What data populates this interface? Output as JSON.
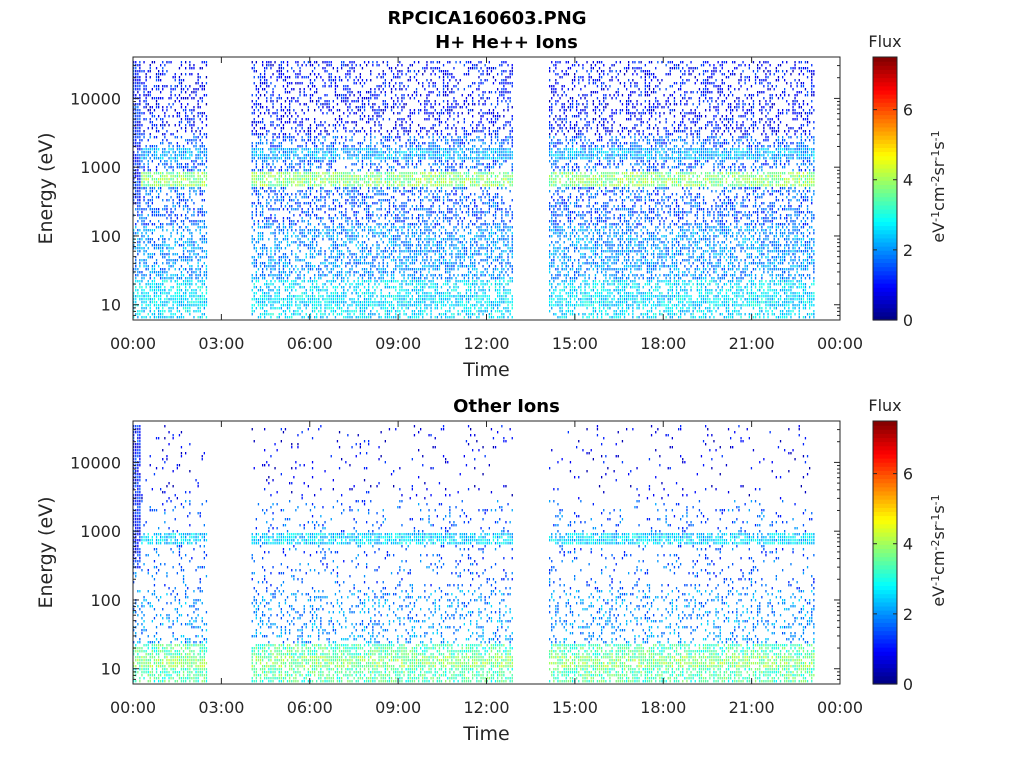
{
  "figure": {
    "title_line1": "RPCICA160603.PNG"
  },
  "chart_data": [
    {
      "type": "heatmap",
      "title": "H+ He++ Ions",
      "xlabel": "Time",
      "ylabel": "Energy (eV)",
      "yscale": "log",
      "ylim": [
        6,
        40000
      ],
      "xlim_hours": [
        0,
        24
      ],
      "x_ticks": [
        "00:00",
        "03:00",
        "06:00",
        "09:00",
        "12:00",
        "15:00",
        "18:00",
        "21:00",
        "00:00"
      ],
      "y_ticks": [
        {
          "value": 10,
          "label": "10"
        },
        {
          "value": 100,
          "label": "100"
        },
        {
          "value": 1000,
          "label": "1000"
        },
        {
          "value": 10000,
          "label": "10000"
        }
      ],
      "data_gaps_hours": [
        [
          2.5,
          4.0
        ],
        [
          12.9,
          14.1
        ]
      ],
      "data_end_hours": 23.1,
      "bands": [
        {
          "center_eV": 700,
          "flux": 3.8
        },
        {
          "center_eV": 1600,
          "flux": 2.2
        },
        {
          "center_eV": 12,
          "flux": 2.6
        }
      ],
      "colorbar": {
        "label": "Flux",
        "unit_parts": [
          "eV",
          "-1",
          "cm",
          "-2",
          "sr",
          "-1",
          "s",
          "-1"
        ],
        "min": 0,
        "max": 7.5,
        "ticks": [
          "0",
          "2",
          "4",
          "6"
        ],
        "colormap": "jet"
      }
    },
    {
      "type": "heatmap",
      "title": "Other Ions",
      "xlabel": "Time",
      "ylabel": "Energy (eV)",
      "yscale": "log",
      "ylim": [
        6,
        40000
      ],
      "xlim_hours": [
        0,
        24
      ],
      "x_ticks": [
        "00:00",
        "03:00",
        "06:00",
        "09:00",
        "12:00",
        "15:00",
        "18:00",
        "21:00",
        "00:00"
      ],
      "y_ticks": [
        {
          "value": 10,
          "label": "10"
        },
        {
          "value": 100,
          "label": "100"
        },
        {
          "value": 1000,
          "label": "1000"
        },
        {
          "value": 10000,
          "label": "10000"
        }
      ],
      "data_gaps_hours": [
        [
          2.5,
          4.0
        ],
        [
          12.9,
          14.1
        ]
      ],
      "data_end_hours": 23.1,
      "bands": [
        {
          "center_eV": 800,
          "flux": 2.5
        },
        {
          "center_eV": 13,
          "flux": 3.8
        }
      ],
      "colorbar": {
        "label": "Flux",
        "unit_parts": [
          "eV",
          "-1",
          "cm",
          "-2",
          "sr",
          "-1",
          "s",
          "-1"
        ],
        "min": 0,
        "max": 7.5,
        "ticks": [
          "0",
          "2",
          "4",
          "6"
        ],
        "colormap": "jet"
      }
    }
  ]
}
